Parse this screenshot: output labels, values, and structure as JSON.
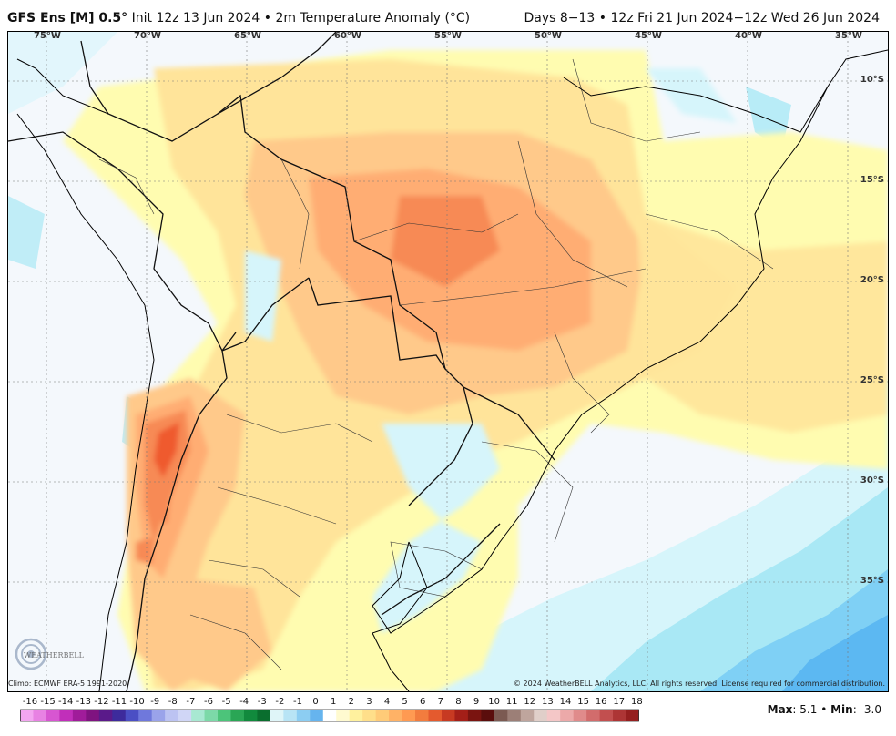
{
  "header": {
    "model": "GFS Ens [M] 0.5",
    "degree": "°",
    "init": "Init 12z 13 Jun 2024",
    "separator": "•",
    "variable": "2m Temperature Anomaly (°C)",
    "valid": "Days 8−13 • 12z Fri 21 Jun 2024−12z Wed 26 Jun 2024"
  },
  "axes": {
    "longitudes": [
      "75°W",
      "70°W",
      "65°W",
      "60°W",
      "55°W",
      "50°W",
      "45°W",
      "40°W",
      "35°W"
    ],
    "latitudes": [
      "10°S",
      "15°S",
      "20°S",
      "25°S",
      "30°S",
      "35°S"
    ]
  },
  "footer": {
    "climo": "Climo: ECMWF ERA-5 1991-2020",
    "copyright": "© 2024 WeatherBELL Analytics, LLC. All rights reserved. License required for commercial distribution."
  },
  "logo_text": "WEATHERBELL",
  "colorbar": {
    "labels": [
      "-16",
      "-15",
      "-14",
      "-13",
      "-12",
      "-11",
      "-10",
      "-9",
      "-8",
      "-7",
      "-6",
      "-5",
      "-4",
      "-3",
      "-2",
      "-1",
      "0",
      "1",
      "2",
      "3",
      "4",
      "5",
      "6",
      "7",
      "8",
      "9",
      "10",
      "11",
      "12",
      "13",
      "14",
      "15",
      "16",
      "17",
      "18"
    ],
    "colors": [
      "#f3a6f0",
      "#e882e3",
      "#d756d1",
      "#c12fba",
      "#a01c9a",
      "#7f1380",
      "#5a1a8a",
      "#3d2b9c",
      "#4b4fc4",
      "#6f78dc",
      "#9aa3ea",
      "#bcc3f2",
      "#d0d6f6",
      "#a8e8d2",
      "#7cd9a8",
      "#4cc47a",
      "#2aa655",
      "#118a3d",
      "#0a6e2e",
      "#dff5f8",
      "#b8e4f5",
      "#8ccdf2",
      "#66b4ee",
      "#ffffff",
      "#fffad0",
      "#fff19e",
      "#ffdf8a",
      "#ffcb78",
      "#ffb266",
      "#ff9a52",
      "#f27c3e",
      "#e45a2e",
      "#c73a22",
      "#a41f18",
      "#7a1410",
      "#5a0d0c",
      "#7b5a52",
      "#9c7f77",
      "#bfa59d",
      "#e0cfc9",
      "#f4c7c7",
      "#eca9a9",
      "#e08b8b",
      "#d26c6c",
      "#c24f4f",
      "#ad3535",
      "#951f1f"
    ]
  },
  "stats": {
    "max_label": "Max",
    "max_value": "5.1",
    "separator": "•",
    "min_label": "Min",
    "min_value": "-3.0"
  },
  "palette": {
    "pos_pale": "#fffcb0",
    "pos_light": "#ffe49a",
    "pos_mid": "#ffc98a",
    "pos_warm": "#ffad73",
    "pos_hot": "#f78a54",
    "pos_max": "#ef5a2e",
    "neg_pale": "#d6f5fb",
    "neg_light": "#a9e8f5",
    "neg_mid": "#7fd0f5",
    "neg_deep": "#5cb8f2"
  }
}
